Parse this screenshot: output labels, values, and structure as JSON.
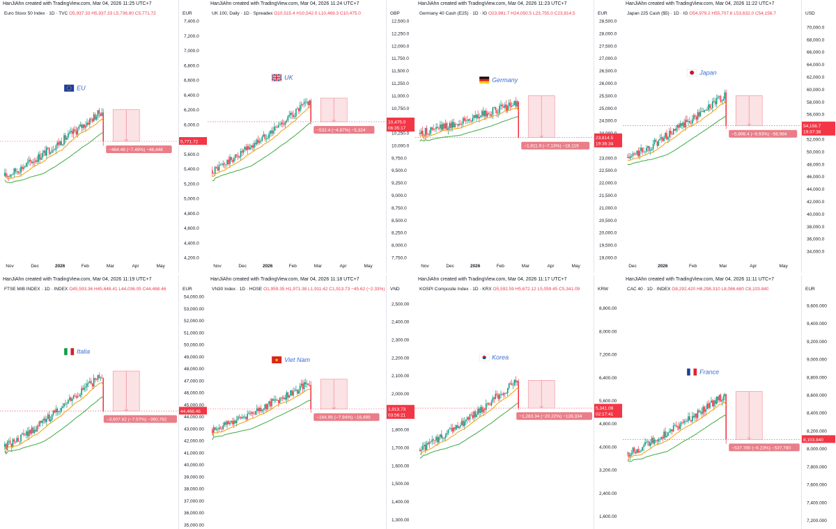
{
  "colors": {
    "up": "#089981",
    "down": "#f23645",
    "ma_fast": "#f7a21b",
    "ma_slow": "#4caf50",
    "measure_fill": "#fbe2e4",
    "measure_line": "#f08a93",
    "label_bg": "#e97e88",
    "price_bg": "#f23645"
  },
  "chart_data": [
    {
      "type": "candlestick",
      "creator": "HanJiAhn created with TradingView.com, Mar 04, 2026 11:25 UTC+7",
      "symbol_prefix": "Euro Stoxx 50 Index · 1D · TVC",
      "ohlc_text": "O5,937.33 H5,937.33 L5,736.80 C5,771.72",
      "currency": "EUR",
      "country": "EU",
      "flag": "eu",
      "yticks": [
        "7,400.0",
        "7,200.0",
        "7,000.0",
        "6,800.0",
        "6,600.0",
        "6,400.0",
        "6,200.0",
        "6,000.0",
        "5,800.0",
        "5,600.0",
        "5,400.0",
        "5,200.0",
        "5,000.0",
        "4,800.0",
        "4,600.0",
        "4,400.0",
        "4,200.0"
      ],
      "ylim": [
        4200,
        7400
      ],
      "xticks": [
        "Nov",
        "Dec",
        "2026",
        "Feb",
        "Mar",
        "Apr",
        "May"
      ],
      "series_points": {
        "start": 5300,
        "end": 6180,
        "last": 5771.72
      },
      "measure": {
        "from": 6200,
        "to": 5771.72,
        "label": "−464.48 (−7.49%) −46,448"
      },
      "last_price_label": "5,771.72"
    },
    {
      "type": "candlestick",
      "creator": "HanJiAhn created with TradingView.com, Mar 04, 2026 11:24 UTC+7",
      "symbol_prefix": "UK 100, Daily · 1D · Spreadex",
      "ohlc_text": "O10,515.4 H10,542.0 L10,469.3 C10,475.0",
      "currency": "GBP",
      "country": "UK",
      "flag": "uk",
      "yticks": [
        "12,500.0",
        "12,250.0",
        "12,000.0",
        "11,750.0",
        "11,500.0",
        "11,250.0",
        "11,000.0",
        "10,750.0",
        "10,500.0",
        "10,250.0",
        "10,000.0",
        "9,750.0",
        "9,500.0",
        "9,250.0",
        "9,000.0",
        "8,750.0",
        "8,500.0",
        "8,250.0",
        "8,000.0",
        "7,750.0"
      ],
      "ylim": [
        7750,
        12500
      ],
      "xticks": [
        "Nov",
        "Dec",
        "2026",
        "Feb",
        "Mar",
        "Apr",
        "May"
      ],
      "series_points": {
        "start": 9500,
        "end": 10900,
        "last": 10475
      },
      "measure": {
        "from": 10950,
        "to": 10475,
        "label": "−532.4 (−4.87%) −5,324"
      },
      "last_price_label": "10,475.0",
      "countdown": "06:35:17"
    },
    {
      "type": "candlestick",
      "creator": "HanJiAhn created with TradingView.com, Mar 04, 2026 11:23 UTC+7",
      "symbol_prefix": "Germany 40 Cash (E25) · 1D · IG",
      "ohlc_text": "O23,981.7 H24,050.5 L23,755.0 C23,814.5",
      "currency": "EUR",
      "country": "Germany",
      "flag": "de",
      "yticks": [
        "28,500.0",
        "28,000.0",
        "27,500.0",
        "27,000.0",
        "26,500.0",
        "26,000.0",
        "25,500.0",
        "25,000.0",
        "24,500.0",
        "24,000.0",
        "23,500.0",
        "23,000.0",
        "22,500.0",
        "22,000.0",
        "21,500.0",
        "21,000.0",
        "20,500.0",
        "20,000.0",
        "19,500.0",
        "19,000.0"
      ],
      "ylim": [
        19000,
        28500
      ],
      "xticks": [
        "Nov",
        "Dec",
        "2026",
        "Feb",
        "Mar",
        "Apr",
        "May"
      ],
      "series_points": {
        "start": 24000,
        "end": 25200,
        "last": 23814.5
      },
      "measure": {
        "from": 25500,
        "to": 23814.5,
        "label": "−1,811.9 (−7.13%) −18,119"
      },
      "last_price_label": "23,814.5",
      "countdown": "19:36:34"
    },
    {
      "type": "candlestick",
      "creator": "HanJiAhn created with TradingView.com, Mar 04, 2026 11:22 UTC+7",
      "symbol_prefix": "Japan 225 Cash ($5) · 1D · IG",
      "ohlc_text": "O54,979.2 H55,707.6 L53,632.0 C54,156.7",
      "currency": "USD",
      "country": "Japan",
      "flag": "jp",
      "yticks": [
        "70,000.0",
        "68,000.0",
        "66,000.0",
        "64,000.0",
        "62,000.0",
        "60,000.0",
        "58,000.0",
        "56,000.0",
        "54,000.0",
        "52,000.0",
        "50,000.0",
        "48,000.0",
        "46,000.0",
        "44,000.0",
        "42,000.0",
        "40,000.0",
        "38,000.0",
        "36,000.0",
        "34,000.0"
      ],
      "ylim": [
        33000,
        71000
      ],
      "xticks": [
        "Dec",
        "2026",
        "Feb",
        "Mar",
        "Apr",
        "May"
      ],
      "series_points": {
        "start": 49000,
        "end": 59000,
        "last": 54156.7
      },
      "measure": {
        "from": 59000,
        "to": 54156.7,
        "label": "−5,898.4 (−9.93%) −58,984"
      },
      "last_price_label": "54,156.7",
      "countdown": "19:37:38"
    },
    {
      "type": "candlestick",
      "creator": "HanJiAhn created with TradingView.com, Mar 04, 2026 11:19 UTC+7",
      "symbol_prefix": "FTSE MIB INDEX · 1D · INDEX",
      "ohlc_text": "O45,593.36 H45,648.41 L44,036.05 C44,468.46",
      "currency": "EUR",
      "country": "Italia",
      "flag": "it",
      "yticks": [
        "54,000.00",
        "53,000.00",
        "52,000.00",
        "51,000.00",
        "50,000.00",
        "49,000.00",
        "48,000.00",
        "47,000.00",
        "46,000.00",
        "45,000.00",
        "44,000.00",
        "43,000.00",
        "42,000.00",
        "41,000.00",
        "40,000.00",
        "39,000.00",
        "38,000.00",
        "37,000.00",
        "36,000.00",
        "35,000.00"
      ],
      "ylim": [
        35000,
        54000
      ],
      "xticks": [],
      "series_points": {
        "start": 41500,
        "end": 47500,
        "last": 44468.46
      },
      "measure": {
        "from": 47800,
        "to": 44468.46,
        "label": "−3,607.82 (−7.57%) −360,782"
      },
      "last_price_label": "44,468.46"
    },
    {
      "type": "candlestick",
      "creator": "HanJiAhn created with TradingView.com, Mar 04, 2026 11:18 UTC+7",
      "symbol_prefix": "VN30 Index · 1D · HOSE",
      "ohlc_text": "O1,959.35 H1,971.38 L1,911.42 C1,913.73 −45.62 (−2.33%)",
      "currency": "VND",
      "country": "Viet Nam",
      "flag": "vn",
      "yticks": [
        "2,500.00",
        "2,400.00",
        "2,300.00",
        "2,200.00",
        "2,100.00",
        "2,000.00",
        "1,900.00",
        "1,800.00",
        "1,700.00",
        "1,600.00",
        "1,500.00",
        "1,400.00",
        "1,300.00"
      ],
      "ylim": [
        1270,
        2540
      ],
      "xticks": [],
      "series_points": {
        "start": 1800,
        "end": 2060,
        "last": 1913.73
      },
      "measure": {
        "from": 2080,
        "to": 1913.73,
        "label": "−164.95 (−7.94%) −16,495"
      },
      "last_price_label": "1,913.73",
      "countdown": "03:56:21"
    },
    {
      "type": "candlestick",
      "creator": "HanJiAhn created with TradingView.com, Mar 04, 2026 11:17 UTC+7",
      "symbol_prefix": "KOSPI Composite Index · 1D · KRX",
      "ohlc_text": "O5,592.59 H5,672.12 L5,059.45 C5,341.09",
      "currency": "KRW",
      "country": "Korea",
      "flag": "kr",
      "yticks": [
        "8,800.00",
        "8,000.00",
        "7,200.00",
        "6,400.00",
        "5,600.00",
        "4,800.00",
        "4,000.00",
        "3,200.00",
        "2,400.00",
        "1,600.00"
      ],
      "ylim": [
        1300,
        9200
      ],
      "xticks": [],
      "series_points": {
        "start": 3900,
        "end": 6300,
        "last": 5341.09
      },
      "measure": {
        "from": 6300,
        "to": 5341.09,
        "label": "−1,283.34 (−20.22%) −128,334"
      },
      "last_price_label": "5,341.09",
      "countdown": "02:17:41"
    },
    {
      "type": "candlestick",
      "creator": "HanJiAhn created with TradingView.com, Mar 04, 2026 11:11 UTC+7",
      "symbol_prefix": "CAC 40 · 1D · INDEX",
      "ohlc_text": "O8,292.420 H8,298.310 L8,086.680 C8,103.840",
      "currency": "EUR",
      "country": "France",
      "flag": "fr",
      "yticks": [
        "9,600.000",
        "9,400.000",
        "9,200.000",
        "9,000.000",
        "8,800.000",
        "8,600.000",
        "8,400.000",
        "8,200.000",
        "8,000.000",
        "7,800.000",
        "7,600.000",
        "7,400.000",
        "7,200.000"
      ],
      "ylim": [
        7150,
        9700
      ],
      "xticks": [],
      "series_points": {
        "start": 7950,
        "end": 8600,
        "last": 8103.84
      },
      "measure": {
        "from": 8640,
        "to": 8103.84,
        "label": "−537.780 (−6.23%) −537,780"
      },
      "last_price_label": "8,103.840"
    }
  ]
}
